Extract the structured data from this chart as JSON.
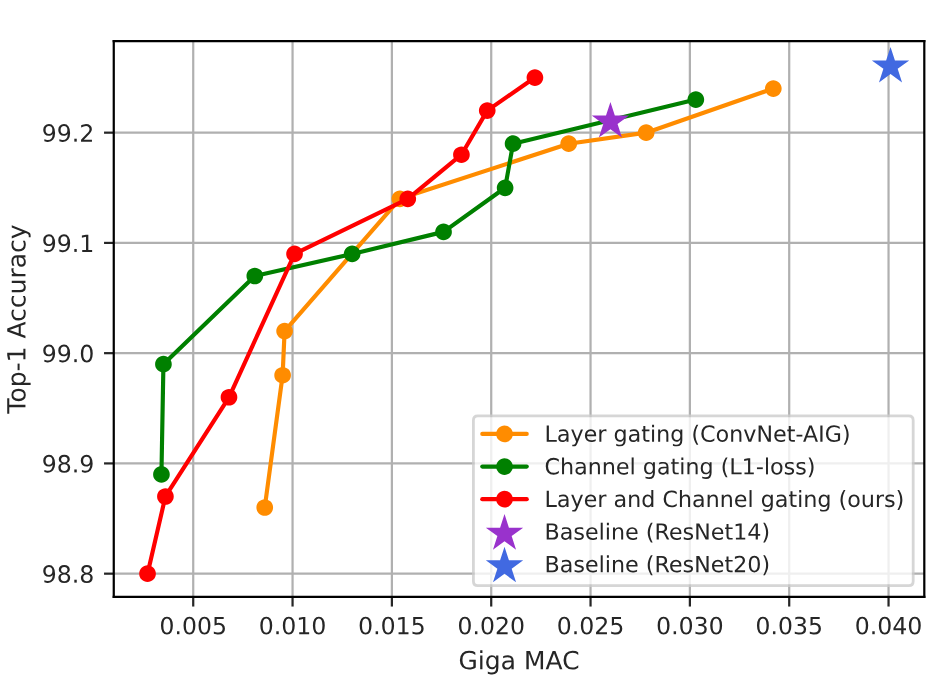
{
  "chart_data": {
    "type": "line",
    "xlabel": "Giga MAC",
    "ylabel": "Top-1 Accuracy",
    "series": [
      {
        "name": "Layer gating (ConvNet-AIG)",
        "color": "#ff8c00",
        "marker": "circle",
        "x": [
          0.0086,
          0.0095,
          0.0096,
          0.0154,
          0.0239,
          0.0278,
          0.0342
        ],
        "values": [
          98.86,
          98.98,
          99.02,
          99.14,
          99.19,
          99.2,
          99.24
        ]
      },
      {
        "name": "Channel gating (L1-loss)",
        "color": "#008000",
        "marker": "circle",
        "x": [
          0.0034,
          0.0035,
          0.0081,
          0.013,
          0.0176,
          0.0207,
          0.0211,
          0.0303
        ],
        "values": [
          98.89,
          98.99,
          99.07,
          99.09,
          99.11,
          99.15,
          99.19,
          99.23
        ]
      },
      {
        "name": "Layer and Channel gating (ours)",
        "color": "#ff0000",
        "marker": "circle",
        "x": [
          0.0027,
          0.0036,
          0.0068,
          0.0101,
          0.0158,
          0.0185,
          0.0198,
          0.0222
        ],
        "values": [
          98.8,
          98.87,
          98.96,
          99.09,
          99.14,
          99.18,
          99.22,
          99.25
        ]
      },
      {
        "name": "Baseline (ResNet14)",
        "type": "scatter",
        "color": "#9932cc",
        "marker": "star",
        "x": [
          0.026
        ],
        "values": [
          99.21
        ]
      },
      {
        "name": "Baseline (ResNet20)",
        "type": "scatter",
        "color": "#4169e1",
        "marker": "star",
        "x": [
          0.0401
        ],
        "values": [
          99.26
        ]
      }
    ],
    "xlim": [
      0.001,
      0.0418
    ],
    "ylim": [
      98.779,
      99.283
    ],
    "xticks": [
      {
        "value": 0.005,
        "label": "0.005"
      },
      {
        "value": 0.01,
        "label": "0.010"
      },
      {
        "value": 0.015,
        "label": "0.015"
      },
      {
        "value": 0.02,
        "label": "0.020"
      },
      {
        "value": 0.025,
        "label": "0.025"
      },
      {
        "value": 0.03,
        "label": "0.030"
      },
      {
        "value": 0.035,
        "label": "0.035"
      },
      {
        "value": 0.04,
        "label": "0.040"
      }
    ],
    "yticks": [
      {
        "value": 98.8,
        "label": "98.8"
      },
      {
        "value": 98.9,
        "label": "98.9"
      },
      {
        "value": 99.0,
        "label": "99.0"
      },
      {
        "value": 99.1,
        "label": "99.1"
      },
      {
        "value": 99.2,
        "label": "99.2"
      }
    ],
    "grid": true,
    "legend": "bottom right"
  }
}
